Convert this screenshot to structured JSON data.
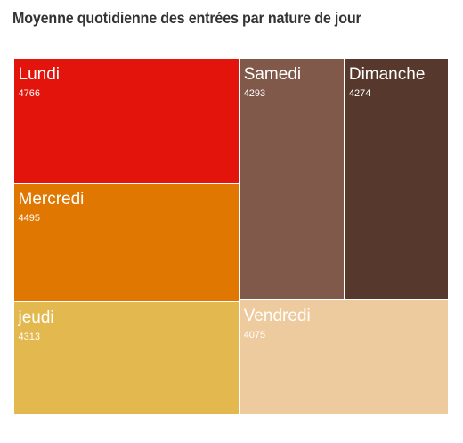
{
  "chart_data": {
    "type": "treemap",
    "title": "Moyenne quotidienne des entrées par nature de jour",
    "items": [
      {
        "label": "Lundi",
        "value": 4766,
        "color": "#e3140b"
      },
      {
        "label": "Mercredi",
        "value": 4495,
        "color": "#e07700"
      },
      {
        "label": "jeudi",
        "value": 4313,
        "color": "#e3b94f"
      },
      {
        "label": "Samedi",
        "value": 4293,
        "color": "#80594a"
      },
      {
        "label": "Dimanche",
        "value": 4274,
        "color": "#56392c"
      },
      {
        "label": "Vendredi",
        "value": 4075,
        "color": "#eecb9e"
      }
    ]
  }
}
